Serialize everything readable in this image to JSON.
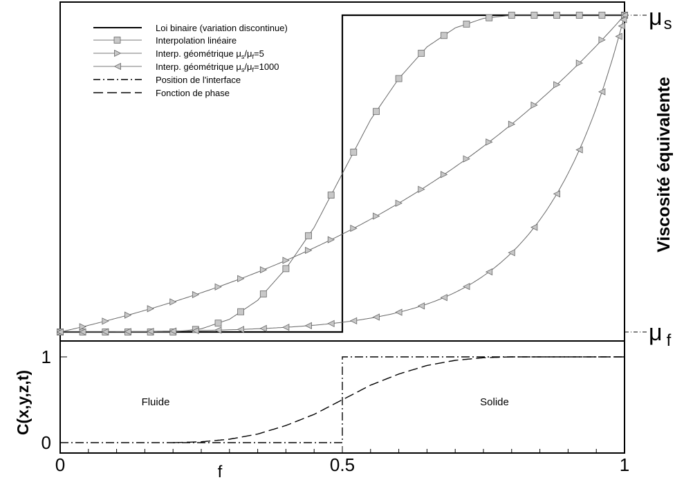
{
  "chart_data": [
    {
      "type": "line",
      "panel": "upper",
      "ylabel": "Viscosité équivalente",
      "y_levels": [
        {
          "symbol": "μ",
          "subscript": "s",
          "value": 1
        },
        {
          "symbol": "μ",
          "subscript": "f",
          "value": 0
        }
      ],
      "xlim": [
        0,
        1
      ],
      "ylim": [
        0,
        1
      ],
      "legend_placement": "top-left",
      "legend": [
        {
          "label": "Loi binaire (variation discontinue)",
          "style": "solid-thick"
        },
        {
          "label": "Interpolation linéaire",
          "style": "square-markers"
        },
        {
          "label_parts": [
            "Interp. géométrique ",
            "μ",
            "s",
            "/",
            "μ",
            "f",
            "=5"
          ],
          "style": "right-triangle-markers"
        },
        {
          "label_parts": [
            "Interp. géométrique ",
            "μ",
            "s",
            "/",
            "μ",
            "f",
            "=1000"
          ],
          "style": "left-triangle-markers"
        },
        {
          "label": "Position de l'interface",
          "style": "dash-dot"
        },
        {
          "label": "Fonction de phase",
          "style": "dashed"
        }
      ],
      "series": [
        {
          "name": "Loi binaire (variation discontinue)",
          "kind": "step",
          "step_at": 0.5
        },
        {
          "name": "Interpolation linéaire",
          "kind": "linear_phase",
          "marker_step": 0.04
        },
        {
          "name": "Interp. géométrique μs/μf=5",
          "kind": "geometric",
          "ratio": 5,
          "marker_step": 0.04
        },
        {
          "name": "Interp. géométrique μs/μf=1000",
          "kind": "geometric",
          "ratio": 1000,
          "marker_step": 0.04
        }
      ]
    },
    {
      "type": "line",
      "panel": "lower",
      "ylabel": "C(x,y,z,t)",
      "xlabel": "f",
      "xlim": [
        0,
        1
      ],
      "ylim": [
        0,
        1
      ],
      "xticks": [
        0,
        0.5,
        1
      ],
      "xtick_labels": [
        "0",
        "0.5",
        "1"
      ],
      "yticks": [
        0,
        1
      ],
      "ytick_labels": [
        "0",
        "1"
      ],
      "annotations": [
        {
          "text": "Fluide",
          "x": 0.2,
          "y": 0.5
        },
        {
          "text": "Solide",
          "x": 0.75,
          "y": 0.5
        }
      ],
      "series": [
        {
          "name": "Position de l'interface",
          "kind": "step",
          "step_at": 0.5
        },
        {
          "name": "Fonction de phase",
          "kind": "smooth_sigmoid",
          "points": [
            {
              "x": 0.2,
              "y": 0.0
            },
            {
              "x": 0.25,
              "y": 0.01
            },
            {
              "x": 0.3,
              "y": 0.04
            },
            {
              "x": 0.35,
              "y": 0.1
            },
            {
              "x": 0.4,
              "y": 0.2
            },
            {
              "x": 0.45,
              "y": 0.33
            },
            {
              "x": 0.5,
              "y": 0.5
            },
            {
              "x": 0.55,
              "y": 0.67
            },
            {
              "x": 0.6,
              "y": 0.8
            },
            {
              "x": 0.65,
              "y": 0.9
            },
            {
              "x": 0.7,
              "y": 0.96
            },
            {
              "x": 0.75,
              "y": 0.99
            },
            {
              "x": 0.8,
              "y": 1.0
            }
          ]
        }
      ]
    }
  ]
}
